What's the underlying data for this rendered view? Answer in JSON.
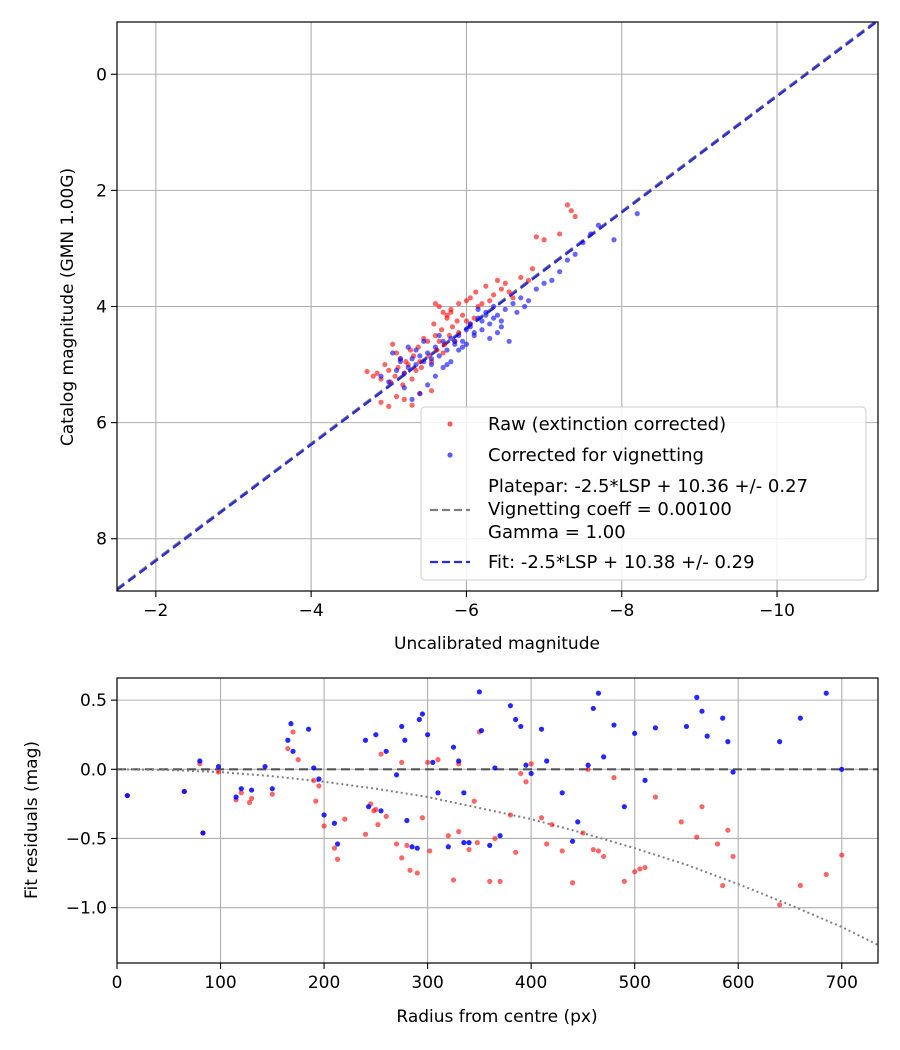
{
  "chart_data": [
    {
      "type": "scatter",
      "xlabel": "Uncalibrated magnitude",
      "ylabel": "Catalog magnitude (GMN 1.00G)",
      "xlim": [
        -1.5,
        -11.3
      ],
      "ylim": [
        8.9,
        -0.9
      ],
      "xticks": [
        -2,
        -4,
        -6,
        -8,
        -10
      ],
      "xtick_labels": [
        "−2",
        "−4",
        "−6",
        "−8",
        "−10"
      ],
      "yticks": [
        0,
        2,
        4,
        6,
        8
      ],
      "ytick_labels": [
        "0",
        "2",
        "4",
        "6",
        "8"
      ],
      "grid": true,
      "legend_position": "lower-right",
      "series": [
        {
          "name": "Raw (extinction corrected)",
          "kind": "scatter",
          "color": "#ff0000",
          "x": [
            -4.72,
            -4.8,
            -4.85,
            -4.9,
            -4.95,
            -5.0,
            -5.02,
            -5.05,
            -5.08,
            -5.1,
            -5.12,
            -5.15,
            -5.18,
            -5.2,
            -5.22,
            -5.25,
            -5.28,
            -5.3,
            -5.32,
            -5.35,
            -5.38,
            -5.4,
            -5.42,
            -5.45,
            -5.5,
            -5.52,
            -5.55,
            -5.58,
            -5.6,
            -5.62,
            -5.65,
            -5.68,
            -5.7,
            -5.72,
            -5.75,
            -5.78,
            -5.8,
            -5.82,
            -5.85,
            -5.88,
            -5.9,
            -5.95,
            -6.0,
            -6.05,
            -6.1,
            -6.12,
            -6.15,
            -6.2,
            -6.25,
            -6.3,
            -6.35,
            -6.4,
            -6.45,
            -6.5,
            -6.55,
            -6.6,
            -6.7,
            -6.8,
            -6.85,
            -6.9,
            -7.0,
            -7.2,
            -7.3,
            -7.35,
            -7.4,
            -5.6,
            -5.65,
            -5.7,
            -5.75,
            -5.8,
            -5.9,
            -6.0,
            -6.05,
            -5.3,
            -5.2,
            -5.1,
            -5.0,
            -4.9,
            -5.4,
            -5.55
          ],
          "y": [
            5.12,
            5.2,
            5.15,
            5.25,
            5.0,
            5.1,
            5.3,
            4.65,
            5.2,
            4.8,
            5.05,
            4.9,
            5.35,
            5.15,
            4.95,
            5.0,
            4.75,
            5.25,
            4.85,
            5.1,
            4.7,
            4.95,
            5.05,
            4.55,
            4.6,
            4.85,
            4.95,
            4.3,
            4.5,
            4.75,
            4.6,
            4.4,
            4.8,
            4.65,
            4.2,
            4.5,
            4.1,
            4.35,
            4.6,
            4.25,
            3.95,
            4.15,
            3.9,
            3.85,
            4.2,
            3.75,
            4.0,
            3.95,
            3.65,
            3.9,
            3.8,
            3.55,
            3.7,
            3.6,
            3.75,
            3.85,
            3.5,
            3.55,
            3.35,
            2.8,
            2.85,
            2.75,
            2.25,
            2.35,
            2.45,
            3.95,
            4.0,
            4.1,
            4.15,
            4.05,
            4.45,
            4.25,
            4.3,
            5.7,
            5.6,
            5.55,
            5.72,
            5.65,
            5.5,
            5.45
          ]
        },
        {
          "name": "Corrected for vignetting",
          "kind": "scatter",
          "color": "#0000ff",
          "x": [
            -4.9,
            -5.0,
            -5.1,
            -5.15,
            -5.2,
            -5.25,
            -5.3,
            -5.35,
            -5.4,
            -5.45,
            -5.5,
            -5.55,
            -5.6,
            -5.65,
            -5.7,
            -5.75,
            -5.8,
            -5.85,
            -5.9,
            -5.95,
            -6.0,
            -6.05,
            -6.1,
            -6.15,
            -6.2,
            -6.25,
            -6.3,
            -6.35,
            -6.4,
            -6.45,
            -6.5,
            -6.6,
            -6.7,
            -6.8,
            -6.9,
            -7.0,
            -7.1,
            -7.2,
            -7.3,
            -7.4,
            -7.5,
            -7.6,
            -7.7,
            -7.9,
            -8.2,
            -5.2,
            -5.3,
            -5.4,
            -5.5,
            -5.6,
            -5.7,
            -5.8,
            -5.9,
            -6.0,
            -6.1,
            -6.2,
            -6.3,
            -6.4,
            -5.05,
            -5.15,
            -5.25,
            -5.35,
            -5.45,
            -5.55,
            -5.65,
            -5.75,
            -5.85,
            -5.95,
            -6.05,
            -6.15,
            -6.25,
            -6.35,
            -6.45,
            -6.55,
            -6.65,
            -6.75
          ],
          "y": [
            5.2,
            5.3,
            5.1,
            4.95,
            5.15,
            5.05,
            4.9,
            5.0,
            4.85,
            4.95,
            4.8,
            5.0,
            4.7,
            4.85,
            4.6,
            4.75,
            4.55,
            4.65,
            4.5,
            4.6,
            4.4,
            4.3,
            4.45,
            4.2,
            4.25,
            4.1,
            4.3,
            4.0,
            4.15,
            4.35,
            4.05,
            3.95,
            3.85,
            3.9,
            3.7,
            3.6,
            3.55,
            3.4,
            3.2,
            3.1,
            2.9,
            2.75,
            2.6,
            2.85,
            2.4,
            5.4,
            5.6,
            5.5,
            5.35,
            5.2,
            5.05,
            4.95,
            4.75,
            4.65,
            4.5,
            4.4,
            4.55,
            4.45,
            4.8,
            4.9,
            4.7,
            4.75,
            4.6,
            4.9,
            4.5,
            5.0,
            4.6,
            4.7,
            4.35,
            4.05,
            4.15,
            4.2,
            4.25,
            4.6,
            4.1,
            4.0
          ]
        },
        {
          "name": "Platepar: -2.5*LSP + 10.36 +/- 0.27\nVignetting coeff = 0.00100\nGamma = 1.00",
          "kind": "line",
          "color": "#808080",
          "dash": "dashed",
          "slope": 1,
          "intercept": 10.36
        },
        {
          "name": "Fit: -2.5*LSP + 10.38 +/- 0.29",
          "kind": "line",
          "color": "#2c2cd4",
          "dash": "dashed",
          "slope": 1,
          "intercept": 10.38
        }
      ],
      "legend": [
        {
          "label": "Raw (extinction corrected)",
          "symbol": "dot",
          "color": "#ff0000"
        },
        {
          "label": "Corrected for vignetting",
          "symbol": "dot",
          "color": "#0000ff"
        },
        {
          "label_lines": [
            "Platepar: -2.5*LSP + 10.36 +/- 0.27",
            "Vignetting coeff = 0.00100",
            "Gamma = 1.00"
          ],
          "symbol": "dash",
          "color": "#808080"
        },
        {
          "label": "Fit: -2.5*LSP + 10.38 +/- 0.29",
          "symbol": "dash",
          "color": "#2c2cd4"
        }
      ]
    },
    {
      "type": "scatter",
      "xlabel": "Radius from centre (px)",
      "ylabel": "Fit residuals (mag)",
      "xlim": [
        0,
        735
      ],
      "ylim": [
        -1.4,
        0.66
      ],
      "xticks": [
        0,
        100,
        200,
        300,
        400,
        500,
        600,
        700
      ],
      "xtick_labels": [
        "0",
        "100",
        "200",
        "300",
        "400",
        "500",
        "600",
        "700"
      ],
      "yticks": [
        0.5,
        0.0,
        -0.5,
        -1.0
      ],
      "ytick_labels": [
        "0.5",
        "0.0",
        "−0.5",
        "−1.0"
      ],
      "grid": true,
      "series": [
        {
          "name": "Raw residuals",
          "kind": "scatter",
          "color": "#ff0000",
          "x": [
            10,
            65,
            80,
            83,
            98,
            115,
            120,
            128,
            130,
            150,
            165,
            170,
            175,
            190,
            192,
            195,
            200,
            210,
            213,
            220,
            240,
            245,
            250,
            252,
            260,
            270,
            275,
            280,
            283,
            290,
            295,
            300,
            302,
            320,
            325,
            330,
            340,
            348,
            350,
            360,
            365,
            370,
            380,
            385,
            390,
            395,
            400,
            410,
            415,
            420,
            430,
            440,
            450,
            455,
            460,
            465,
            470,
            480,
            490,
            500,
            505,
            510,
            520,
            545,
            560,
            565,
            580,
            585,
            590,
            595,
            640,
            660,
            685,
            700,
            248,
            255,
            275,
            310,
            330,
            345
          ],
          "y": [
            -0.19,
            -0.16,
            0.04,
            -0.46,
            -0.02,
            -0.22,
            -0.17,
            -0.24,
            -0.21,
            -0.18,
            0.15,
            0.27,
            0.07,
            -0.08,
            -0.23,
            -0.12,
            -0.41,
            -0.57,
            -0.65,
            -0.36,
            -0.47,
            -0.25,
            -0.29,
            -0.4,
            -0.34,
            -0.54,
            -0.64,
            -0.55,
            -0.73,
            -0.75,
            -0.35,
            0.05,
            -0.59,
            -0.48,
            -0.8,
            -0.45,
            -0.58,
            -0.53,
            0.27,
            -0.81,
            -0.5,
            -0.81,
            -0.33,
            -0.6,
            -0.03,
            -0.09,
            0.04,
            -0.35,
            -0.54,
            -0.4,
            -0.59,
            -0.82,
            -0.46,
            0.0,
            -0.58,
            -0.59,
            -0.63,
            -0.06,
            -0.81,
            -0.74,
            -0.72,
            -0.71,
            -0.2,
            -0.38,
            -0.49,
            -0.27,
            -0.54,
            -0.84,
            -0.44,
            -0.63,
            -0.98,
            -0.84,
            -0.76,
            -0.62,
            -0.3,
            0.11,
            0.05,
            0.07,
            0.04,
            -0.23
          ]
        },
        {
          "name": "Corrected residuals",
          "kind": "scatter",
          "color": "#0000ff",
          "x": [
            10,
            65,
            80,
            83,
            98,
            115,
            120,
            130,
            143,
            150,
            165,
            168,
            170,
            185,
            190,
            195,
            200,
            210,
            213,
            240,
            243,
            250,
            255,
            260,
            270,
            275,
            278,
            280,
            285,
            290,
            292,
            295,
            300,
            305,
            320,
            325,
            330,
            335,
            340,
            350,
            352,
            360,
            365,
            370,
            380,
            385,
            390,
            395,
            400,
            410,
            415,
            430,
            440,
            445,
            455,
            460,
            465,
            470,
            480,
            490,
            500,
            510,
            520,
            550,
            560,
            565,
            570,
            585,
            590,
            595,
            640,
            660,
            685,
            700,
            310,
            335
          ],
          "y": [
            -0.19,
            -0.16,
            0.06,
            -0.46,
            0.02,
            -0.2,
            -0.14,
            -0.15,
            0.02,
            -0.14,
            0.21,
            0.33,
            0.13,
            0.29,
            0.01,
            -0.07,
            -0.33,
            -0.39,
            -0.54,
            0.21,
            -0.27,
            0.25,
            -0.3,
            0.13,
            -0.04,
            0.31,
            0.21,
            -0.37,
            -0.56,
            -0.57,
            0.36,
            0.4,
            0.25,
            0.05,
            -0.56,
            0.16,
            0.06,
            -0.17,
            -0.53,
            0.56,
            0.28,
            -0.55,
            0.01,
            -0.48,
            0.46,
            0.36,
            0.31,
            0.03,
            -0.03,
            0.29,
            0.06,
            -0.17,
            -0.52,
            -0.38,
            0.03,
            0.44,
            0.55,
            0.09,
            0.32,
            -0.27,
            0.26,
            -0.08,
            0.3,
            0.31,
            0.52,
            0.42,
            0.24,
            0.37,
            0.2,
            -0.02,
            0.2,
            0.37,
            0.55,
            0.0,
            -0.17,
            -0.53
          ]
        },
        {
          "name": "Zero line",
          "kind": "line",
          "color": "#404040",
          "dash": "dashed",
          "x": [
            0,
            735
          ],
          "y": [
            0,
            0
          ]
        },
        {
          "name": "Vignetting model",
          "kind": "curve",
          "color": "#808080",
          "dash": "dotted",
          "x": [
            0,
            50,
            100,
            150,
            200,
            250,
            300,
            350,
            400,
            450,
            500,
            550,
            600,
            650,
            700,
            735
          ],
          "y": [
            0.0,
            -0.005,
            -0.02,
            -0.05,
            -0.09,
            -0.14,
            -0.2,
            -0.28,
            -0.36,
            -0.46,
            -0.57,
            -0.69,
            -0.83,
            -0.98,
            -1.14,
            -1.27
          ]
        }
      ]
    }
  ]
}
